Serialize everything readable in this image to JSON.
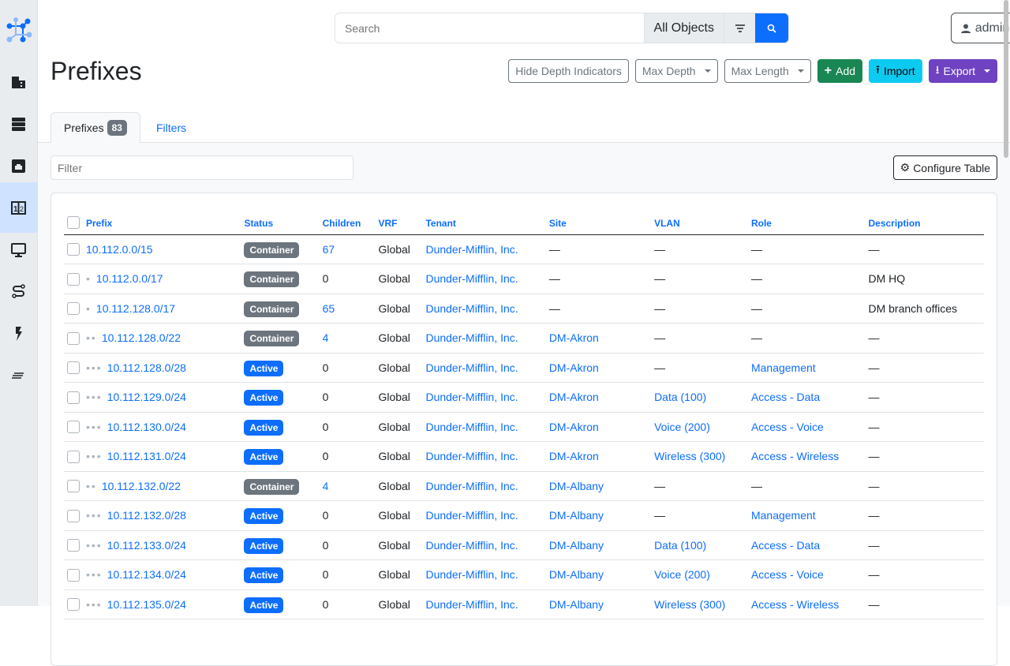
{
  "sidebar": {
    "items": [
      {
        "icon": "organization-icon"
      },
      {
        "icon": "devices-icon"
      },
      {
        "icon": "connections-icon"
      },
      {
        "icon": "ipam-icon",
        "active": true
      },
      {
        "icon": "virtualization-icon"
      },
      {
        "icon": "circuits-icon"
      },
      {
        "icon": "power-icon"
      },
      {
        "icon": "other-icon"
      }
    ]
  },
  "search": {
    "placeholder": "Search",
    "scope": "All Objects"
  },
  "user": {
    "name": "admin"
  },
  "page": {
    "title": "Prefixes"
  },
  "buttons": {
    "hide_depth": "Hide Depth Indicators",
    "max_depth": "Max Depth",
    "max_length": "Max Length",
    "add": "Add",
    "import": "Import",
    "export": "Export"
  },
  "tabs": {
    "prefixes": "Prefixes",
    "count": "83",
    "filters": "Filters"
  },
  "filter": {
    "placeholder": "Filter"
  },
  "configure": "Configure Table",
  "colors": {
    "container": "#6c757d",
    "active": "#0d6efd"
  },
  "table": {
    "headers": [
      "Prefix",
      "Status",
      "Children",
      "VRF",
      "Tenant",
      "Site",
      "VLAN",
      "Role",
      "Description"
    ],
    "rows": [
      {
        "depth": 0,
        "prefix": "10.112.0.0/15",
        "status": "Container",
        "children": "67",
        "vrf": "Global",
        "tenant": "Dunder-Mifflin, Inc.",
        "site": "—",
        "vlan": "—",
        "role": "—",
        "description": "—"
      },
      {
        "depth": 1,
        "prefix": "10.112.0.0/17",
        "status": "Container",
        "children": "0",
        "vrf": "Global",
        "tenant": "Dunder-Mifflin, Inc.",
        "site": "—",
        "vlan": "—",
        "role": "—",
        "description": "DM HQ"
      },
      {
        "depth": 1,
        "prefix": "10.112.128.0/17",
        "status": "Container",
        "children": "65",
        "vrf": "Global",
        "tenant": "Dunder-Mifflin, Inc.",
        "site": "—",
        "vlan": "—",
        "role": "—",
        "description": "DM branch offices"
      },
      {
        "depth": 2,
        "prefix": "10.112.128.0/22",
        "status": "Container",
        "children": "4",
        "vrf": "Global",
        "tenant": "Dunder-Mifflin, Inc.",
        "site": "DM-Akron",
        "vlan": "—",
        "role": "—",
        "description": "—"
      },
      {
        "depth": 3,
        "prefix": "10.112.128.0/28",
        "status": "Active",
        "children": "0",
        "vrf": "Global",
        "tenant": "Dunder-Mifflin, Inc.",
        "site": "DM-Akron",
        "vlan": "—",
        "role": "Management",
        "description": "—"
      },
      {
        "depth": 3,
        "prefix": "10.112.129.0/24",
        "status": "Active",
        "children": "0",
        "vrf": "Global",
        "tenant": "Dunder-Mifflin, Inc.",
        "site": "DM-Akron",
        "vlan": "Data (100)",
        "role": "Access - Data",
        "description": "—"
      },
      {
        "depth": 3,
        "prefix": "10.112.130.0/24",
        "status": "Active",
        "children": "0",
        "vrf": "Global",
        "tenant": "Dunder-Mifflin, Inc.",
        "site": "DM-Akron",
        "vlan": "Voice (200)",
        "role": "Access - Voice",
        "description": "—"
      },
      {
        "depth": 3,
        "prefix": "10.112.131.0/24",
        "status": "Active",
        "children": "0",
        "vrf": "Global",
        "tenant": "Dunder-Mifflin, Inc.",
        "site": "DM-Akron",
        "vlan": "Wireless (300)",
        "role": "Access - Wireless",
        "description": "—"
      },
      {
        "depth": 2,
        "prefix": "10.112.132.0/22",
        "status": "Container",
        "children": "4",
        "vrf": "Global",
        "tenant": "Dunder-Mifflin, Inc.",
        "site": "DM-Albany",
        "vlan": "—",
        "role": "—",
        "description": "—"
      },
      {
        "depth": 3,
        "prefix": "10.112.132.0/28",
        "status": "Active",
        "children": "0",
        "vrf": "Global",
        "tenant": "Dunder-Mifflin, Inc.",
        "site": "DM-Albany",
        "vlan": "—",
        "role": "Management",
        "description": "—"
      },
      {
        "depth": 3,
        "prefix": "10.112.133.0/24",
        "status": "Active",
        "children": "0",
        "vrf": "Global",
        "tenant": "Dunder-Mifflin, Inc.",
        "site": "DM-Albany",
        "vlan": "Data (100)",
        "role": "Access - Data",
        "description": "—"
      },
      {
        "depth": 3,
        "prefix": "10.112.134.0/24",
        "status": "Active",
        "children": "0",
        "vrf": "Global",
        "tenant": "Dunder-Mifflin, Inc.",
        "site": "DM-Albany",
        "vlan": "Voice (200)",
        "role": "Access - Voice",
        "description": "—"
      },
      {
        "depth": 3,
        "prefix": "10.112.135.0/24",
        "status": "Active",
        "children": "0",
        "vrf": "Global",
        "tenant": "Dunder-Mifflin, Inc.",
        "site": "DM-Albany",
        "vlan": "Wireless (300)",
        "role": "Access - Wireless",
        "description": "—"
      }
    ]
  }
}
